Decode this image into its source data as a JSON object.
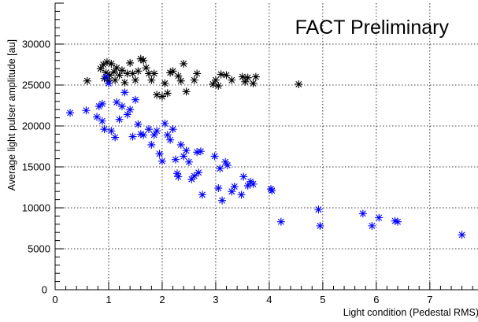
{
  "chart_data": {
    "type": "scatter",
    "title": "",
    "annotation": "FACT Preliminary",
    "xlabel": "Light condition (Pedestal RMS)",
    "ylabel": "Average light pulser amplitude [au]",
    "xlim": [
      0,
      7.9
    ],
    "ylim": [
      0,
      35000
    ],
    "x_ticks": [
      0,
      1,
      2,
      3,
      4,
      5,
      6,
      7
    ],
    "x_tick_labels": [
      "0",
      "1",
      "2",
      "3",
      "4",
      "5",
      "6",
      "7"
    ],
    "y_ticks": [
      0,
      5000,
      10000,
      15000,
      20000,
      25000,
      30000
    ],
    "y_tick_labels": [
      "0",
      "5000",
      "10000",
      "15000",
      "20000",
      "25000",
      "30000"
    ],
    "grid": true,
    "legend": "none",
    "marker": "asterisk",
    "series": [
      {
        "color": "#000000",
        "points": [
          [
            0.6,
            25500
          ],
          [
            0.85,
            27000
          ],
          [
            0.9,
            27500
          ],
          [
            0.92,
            25800
          ],
          [
            0.95,
            26500
          ],
          [
            0.97,
            27800
          ],
          [
            1.0,
            25500
          ],
          [
            1.02,
            26200
          ],
          [
            1.05,
            27600
          ],
          [
            1.1,
            26600
          ],
          [
            1.12,
            25600
          ],
          [
            1.15,
            27100
          ],
          [
            1.2,
            26200
          ],
          [
            1.25,
            26800
          ],
          [
            1.3,
            25300
          ],
          [
            1.35,
            26400
          ],
          [
            1.4,
            27700
          ],
          [
            1.45,
            26400
          ],
          [
            1.5,
            25600
          ],
          [
            1.55,
            26700
          ],
          [
            1.6,
            28200
          ],
          [
            1.65,
            28000
          ],
          [
            1.7,
            27100
          ],
          [
            1.75,
            26400
          ],
          [
            1.8,
            25600
          ],
          [
            1.85,
            26400
          ],
          [
            1.9,
            23800
          ],
          [
            2.0,
            23600
          ],
          [
            2.05,
            25200
          ],
          [
            2.1,
            24000
          ],
          [
            2.15,
            26500
          ],
          [
            2.2,
            26700
          ],
          [
            2.3,
            26100
          ],
          [
            2.35,
            25500
          ],
          [
            2.4,
            27600
          ],
          [
            2.45,
            24200
          ],
          [
            2.6,
            25600
          ],
          [
            2.65,
            26400
          ],
          [
            2.95,
            25100
          ],
          [
            3.0,
            25600
          ],
          [
            3.05,
            24900
          ],
          [
            3.1,
            26300
          ],
          [
            3.2,
            26200
          ],
          [
            3.3,
            25600
          ],
          [
            3.5,
            26000
          ],
          [
            3.55,
            25400
          ],
          [
            3.6,
            25900
          ],
          [
            3.7,
            25200
          ],
          [
            3.75,
            26000
          ],
          [
            4.55,
            25100
          ]
        ]
      },
      {
        "color": "#0000ff",
        "points": [
          [
            0.28,
            21600
          ],
          [
            0.58,
            21900
          ],
          [
            0.78,
            21100
          ],
          [
            0.82,
            22400
          ],
          [
            0.88,
            22700
          ],
          [
            0.88,
            20600
          ],
          [
            0.92,
            19600
          ],
          [
            0.95,
            26000
          ],
          [
            1.0,
            25200
          ],
          [
            1.05,
            19400
          ],
          [
            1.12,
            18600
          ],
          [
            1.15,
            22900
          ],
          [
            1.2,
            20800
          ],
          [
            1.25,
            22400
          ],
          [
            1.3,
            24100
          ],
          [
            1.35,
            21400
          ],
          [
            1.4,
            22000
          ],
          [
            1.45,
            18700
          ],
          [
            1.5,
            23200
          ],
          [
            1.55,
            20200
          ],
          [
            1.6,
            19000
          ],
          [
            1.65,
            18900
          ],
          [
            1.75,
            19600
          ],
          [
            1.8,
            17700
          ],
          [
            1.85,
            18900
          ],
          [
            1.9,
            19400
          ],
          [
            1.95,
            16600
          ],
          [
            2.0,
            15700
          ],
          [
            2.05,
            20300
          ],
          [
            2.1,
            18900
          ],
          [
            2.15,
            18300
          ],
          [
            2.2,
            19600
          ],
          [
            2.25,
            15900
          ],
          [
            2.28,
            14200
          ],
          [
            2.3,
            13800
          ],
          [
            2.35,
            17700
          ],
          [
            2.4,
            16300
          ],
          [
            2.45,
            17000
          ],
          [
            2.5,
            15600
          ],
          [
            2.55,
            13500
          ],
          [
            2.6,
            13900
          ],
          [
            2.65,
            16800
          ],
          [
            2.68,
            14300
          ],
          [
            2.72,
            16900
          ],
          [
            2.75,
            11600
          ],
          [
            2.98,
            16300
          ],
          [
            3.05,
            12400
          ],
          [
            3.08,
            14800
          ],
          [
            3.12,
            10900
          ],
          [
            3.18,
            15600
          ],
          [
            3.22,
            15200
          ],
          [
            3.3,
            12000
          ],
          [
            3.35,
            12600
          ],
          [
            3.48,
            11600
          ],
          [
            3.52,
            13800
          ],
          [
            3.6,
            12700
          ],
          [
            3.65,
            13200
          ],
          [
            3.7,
            12900
          ],
          [
            4.03,
            12300
          ],
          [
            4.05,
            12100
          ],
          [
            4.22,
            8300
          ],
          [
            4.92,
            9800
          ],
          [
            4.95,
            7800
          ],
          [
            5.75,
            9300
          ],
          [
            5.92,
            7800
          ],
          [
            6.05,
            8800
          ],
          [
            6.35,
            8400
          ],
          [
            6.4,
            8300
          ],
          [
            7.6,
            6700
          ]
        ]
      }
    ]
  }
}
